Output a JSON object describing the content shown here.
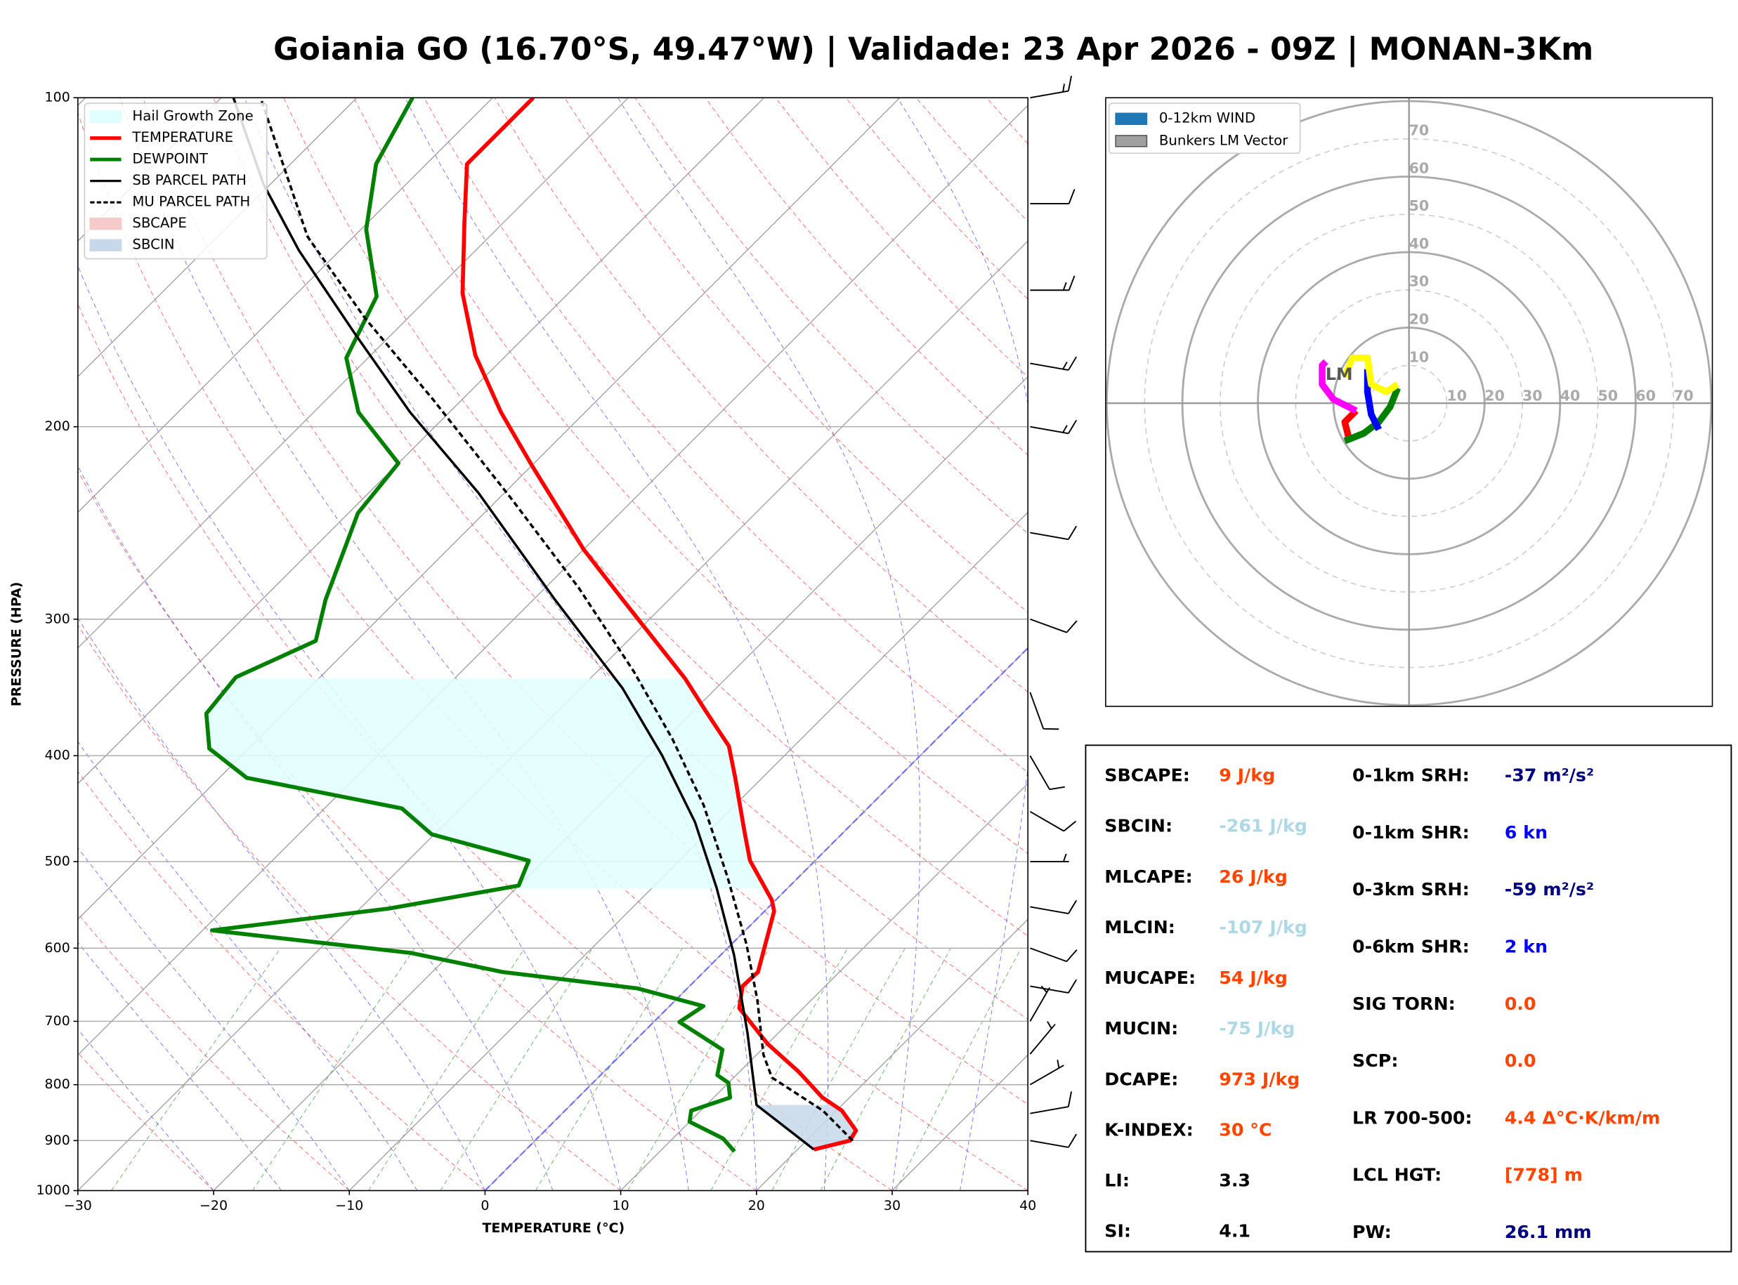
{
  "title": "Goiania GO (16.70°S, 49.47°W) | Validade: 23 Apr 2026 - 09Z | MONAN-3Km",
  "chart_data": [
    {
      "type": "skewt",
      "x_label": "TEMPERATURE (°C)",
      "y_label": "PRESSURE (HPA)",
      "xlim": [
        -30,
        40
      ],
      "ylim": [
        1000,
        100
      ],
      "log_y": true,
      "grid": true,
      "highlight_isotherm": 0,
      "xticks": [
        {
          "value": -30,
          "label": "−30"
        },
        {
          "value": -20,
          "label": "−20"
        },
        {
          "value": -10,
          "label": "−10"
        },
        0,
        10,
        20,
        30,
        40
      ],
      "yticks": [
        100,
        200,
        300,
        400,
        500,
        600,
        700,
        800,
        900,
        1000
      ],
      "series": [
        {
          "name": "TEMPERATURE",
          "color": "#ff0000",
          "dashed": false,
          "pressure": [
            917,
            900,
            881,
            845,
            822,
            778,
            734,
            681,
            650,
            631,
            555,
            542,
            499,
            471,
            419,
            392,
            364,
            340,
            288,
            259,
            217,
            194,
            172,
            151,
            130,
            115,
            100
          ],
          "values": [
            21.2,
            23.2,
            22.9,
            20.4,
            18.0,
            14.3,
            10.0,
            5.3,
            3.9,
            4.0,
            0.7,
            -0.3,
            -4.8,
            -7.2,
            -12.0,
            -14.8,
            -19.1,
            -23.0,
            -33.4,
            -40.0,
            -50.0,
            -56.2,
            -62.3,
            -67.8,
            -72.9,
            -77.0,
            -77.0
          ]
        },
        {
          "name": "DEWPOINT",
          "color": "#008000",
          "dashed": false,
          "pressure": [
            921,
            896,
            865,
            845,
            822,
            797,
            784,
            743,
            701,
            678,
            653,
            631,
            606,
            578,
            552,
            526,
            499,
            472,
            447,
            419,
            394,
            366,
            339,
            314,
            288,
            240,
            216,
            194,
            173,
            152,
            132,
            115,
            100
          ],
          "values": [
            15.5,
            13.7,
            10.0,
            9.3,
            11.2,
            10.0,
            8.6,
            7.1,
            1.9,
            2.5,
            -3.7,
            -14.8,
            -23.0,
            -39.3,
            -27.9,
            -20.0,
            -21.1,
            -30.2,
            -34.3,
            -48.0,
            -52.9,
            -55.7,
            -56.2,
            -53.0,
            -55.3,
            -59.3,
            -60.0,
            -66.7,
            -71.6,
            -73.9,
            -79.6,
            -83.7,
            -85.9
          ]
        },
        {
          "name": "SB PARCEL PATH",
          "color": "#000000",
          "dashed": false,
          "pressure": [
            917,
            835,
            717,
            609,
            529,
            460,
            400,
            347,
            288,
            230,
            194,
            164,
            138,
            120,
            100
          ],
          "values": [
            21.2,
            13.7,
            7.7,
            1.0,
            -5.2,
            -11.7,
            -19.0,
            -26.9,
            -38.4,
            -51.9,
            -62.9,
            -72.9,
            -83.0,
            -90.5,
            -99.1
          ]
        },
        {
          "name": "MU PARCEL PATH",
          "color": "#000000",
          "dashed": true,
          "pressure": [
            900,
            845,
            788,
            751,
            669,
            595,
            517,
            444,
            386,
            335,
            281,
            233,
            189,
            159,
            134,
            100
          ],
          "values": [
            23.4,
            19.0,
            12.8,
            10.5,
            6.0,
            1.1,
            -5.2,
            -12.3,
            -19.5,
            -27.3,
            -37.5,
            -49.0,
            -62.1,
            -73.2,
            -83.4,
            -97.1
          ]
        }
      ],
      "shading": [
        {
          "name": "Hail Growth Zone",
          "color": "#e0ffff",
          "between": [
            1,
            0
          ],
          "pressure_range": [
            529,
            340
          ]
        },
        {
          "name": "SBCAPE",
          "color": "#f6caca"
        },
        {
          "name": "SBCIN",
          "color": "#c6d8ea",
          "between": [
            2,
            0
          ],
          "pressure_range": [
            917,
            835
          ]
        }
      ],
      "winds": {
        "pressure": [
          900,
          850,
          800,
          750,
          700,
          650,
          600,
          550,
          500,
          450,
          400,
          350,
          300,
          250,
          200,
          175,
          150,
          125,
          100
        ],
        "speed": [
          10,
          10,
          5,
          5,
          5,
          10,
          10,
          10,
          5,
          10,
          10,
          10,
          10,
          10,
          15,
          15,
          15,
          10,
          15
        ],
        "direction": [
          100,
          80,
          60,
          40,
          30,
          100,
          110,
          100,
          90,
          120,
          150,
          160,
          110,
          100,
          100,
          100,
          90,
          90,
          80
        ]
      }
    },
    {
      "type": "hodograph",
      "rlim": [
        0,
        80
      ],
      "rticks": [
        10,
        20,
        30,
        40,
        50,
        60,
        70
      ],
      "legend": [
        {
          "name": "0-12km WIND",
          "color": "#1f77b4"
        },
        {
          "name": "Bunkers LM Vector",
          "color": "#a0a0a0"
        }
      ],
      "series": [
        {
          "color": "#ff0000",
          "u": [
            -16,
            -17,
            -14
          ],
          "v": [
            -9,
            -5,
            -2
          ]
        },
        {
          "color": "#008000",
          "u": [
            -17,
            -12,
            -8,
            -5,
            -3
          ],
          "v": [
            -10,
            -8,
            -5,
            -1,
            4
          ]
        },
        {
          "color": "#0000ff",
          "u": [
            -8,
            -10,
            -11,
            -11
          ],
          "v": [
            -7,
            -3,
            3,
            9
          ]
        },
        {
          "color": "#ff00ff",
          "u": [
            -14,
            -20,
            -23,
            -23,
            -22
          ],
          "v": [
            -2,
            1,
            5,
            10,
            11
          ]
        },
        {
          "color": "#ffff00",
          "u": [
            -17,
            -15,
            -11,
            -10,
            -6,
            -3
          ],
          "v": [
            7,
            12,
            12,
            5,
            3,
            5
          ]
        }
      ],
      "lm": {
        "label": "LM",
        "u": -18.5,
        "v": 7.4
      }
    }
  ],
  "indices": {
    "left": [
      {
        "label": "SBCAPE:",
        "value": "9 J/kg",
        "color": "#ff4500"
      },
      {
        "label": "SBCIN:",
        "value": "-261 J/kg",
        "color": "#add8e6"
      },
      {
        "label": "MLCAPE:",
        "value": "26 J/kg",
        "color": "#ff4500"
      },
      {
        "label": "MLCIN:",
        "value": "-107 J/kg",
        "color": "#add8e6"
      },
      {
        "label": "MUCAPE:",
        "value": "54 J/kg",
        "color": "#ff4500"
      },
      {
        "label": "MUCIN:",
        "value": "-75 J/kg",
        "color": "#add8e6"
      },
      {
        "label": "DCAPE:",
        "value": "973 J/kg",
        "color": "#ff4500"
      },
      {
        "label": "K-INDEX:",
        "value": "30 °C",
        "color": "#ff4500"
      },
      {
        "label": "LI:",
        "value": "3.3",
        "color": "#000000"
      },
      {
        "label": "SI:",
        "value": "4.1",
        "color": "#000000"
      }
    ],
    "right": [
      {
        "label": "0-1km SRH:",
        "value": "-37 m²/s²",
        "color": "#000080"
      },
      {
        "label": "0-1km SHR:",
        "value": "6 kn",
        "color": "#0000ff"
      },
      {
        "label": "0-3km SRH:",
        "value": "-59 m²/s²",
        "color": "#000080"
      },
      {
        "label": "0-6km SHR:",
        "value": "2 kn",
        "color": "#0000ff"
      },
      {
        "label": "SIG TORN:",
        "value": "0.0",
        "color": "#ff4500"
      },
      {
        "label": "SCP:",
        "value": "0.0",
        "color": "#ff4500"
      },
      {
        "label": "LR 700-500:",
        "value": "4.4 Δ°C·K/km/m",
        "color": "#ff4500"
      },
      {
        "label": "LCL HGT:",
        "value": "[778] m",
        "color": "#ff4500"
      },
      {
        "label": "PW:",
        "value": "26.1 mm",
        "color": "#000080"
      }
    ]
  }
}
